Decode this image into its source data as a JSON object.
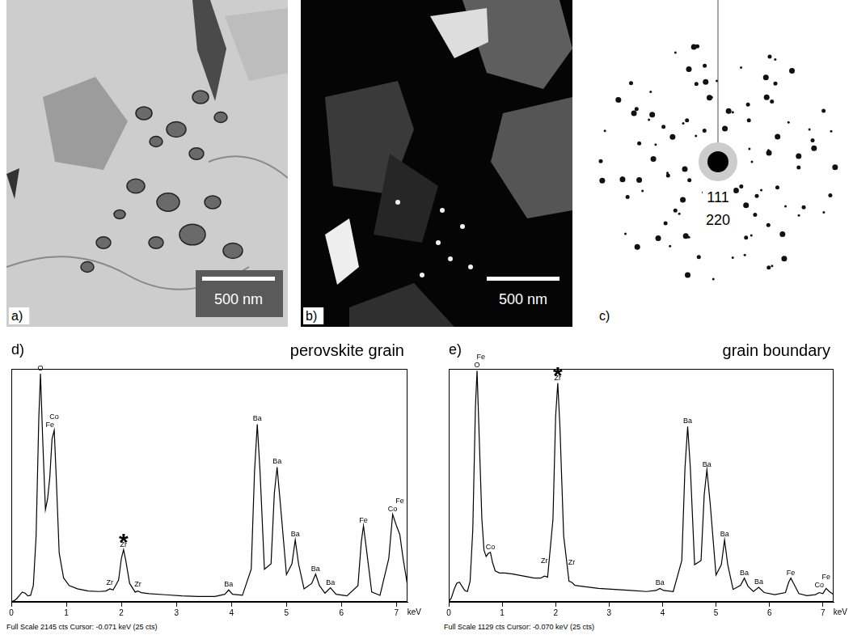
{
  "panels": [
    {
      "letter": "a)",
      "scale_bar": "500 nm"
    },
    {
      "letter": "b)",
      "scale_bar": "500 nm"
    },
    {
      "letter": "c)",
      "ring_labels": [
        "111",
        "220"
      ]
    }
  ],
  "chart_data": [
    {
      "type": "line",
      "letter": "d)",
      "title": "perovskite grain",
      "x_label": "keV",
      "footer": "Full Scale 2145 cts Cursor: -0.071 keV (25 cts)",
      "xlim": [
        0,
        7.2
      ],
      "xticks": [
        0,
        1,
        2,
        3,
        4,
        5,
        6,
        7
      ],
      "ylim": [
        0,
        2145
      ],
      "tick_labels": "x",
      "grid": false,
      "color": "#000000",
      "x": [
        0,
        0.05,
        0.1,
        0.15,
        0.2,
        0.25,
        0.3,
        0.35,
        0.4,
        0.45,
        0.5,
        0.53,
        0.57,
        0.62,
        0.66,
        0.7,
        0.74,
        0.78,
        0.82,
        0.87,
        0.95,
        1.05,
        1.2,
        1.4,
        1.6,
        1.72,
        1.79,
        1.85,
        1.95,
        2.0,
        2.04,
        2.08,
        2.15,
        2.25,
        2.3,
        2.36,
        2.5,
        2.8,
        3.1,
        3.4,
        3.7,
        3.88,
        3.95,
        4.02,
        4.2,
        4.36,
        4.42,
        4.47,
        4.52,
        4.6,
        4.72,
        4.78,
        4.83,
        4.89,
        5.0,
        5.1,
        5.16,
        5.22,
        5.32,
        5.46,
        5.53,
        5.6,
        5.7,
        5.8,
        5.9,
        6.1,
        6.3,
        6.36,
        6.4,
        6.45,
        6.55,
        6.7,
        6.86,
        6.93,
        7.0,
        7.06,
        7.12,
        7.2
      ],
      "values": [
        0,
        10,
        30,
        60,
        90,
        80,
        55,
        60,
        150,
        600,
        1700,
        2100,
        1500,
        850,
        950,
        1150,
        1500,
        1580,
        1100,
        450,
        220,
        150,
        120,
        100,
        95,
        100,
        120,
        110,
        200,
        400,
        480,
        380,
        170,
        90,
        100,
        85,
        75,
        65,
        55,
        50,
        50,
        70,
        110,
        70,
        60,
        300,
        1200,
        1635,
        1200,
        300,
        350,
        1000,
        1240,
        900,
        250,
        350,
        570,
        350,
        120,
        170,
        255,
        150,
        80,
        130,
        70,
        55,
        150,
        550,
        700,
        500,
        90,
        60,
        400,
        805,
        700,
        620,
        400,
        150
      ],
      "annotations": [
        {
          "text": "O",
          "x": 0.53
        },
        {
          "text": "Fe",
          "x": 0.7
        },
        {
          "text": "Co",
          "x": 0.78
        },
        {
          "text": "Zr",
          "x": 1.79
        },
        {
          "text": "Zr",
          "x": 2.04
        },
        {
          "text": "Zr",
          "x": 2.3
        },
        {
          "text": "Ba",
          "x": 3.95
        },
        {
          "text": "Ba",
          "x": 4.47
        },
        {
          "text": "Ba",
          "x": 4.83
        },
        {
          "text": "Ba",
          "x": 5.16
        },
        {
          "text": "Ba",
          "x": 5.53
        },
        {
          "text": "Ba",
          "x": 5.8
        },
        {
          "text": "Fe",
          "x": 6.4
        },
        {
          "text": "Co",
          "x": 6.93
        },
        {
          "text": "Fe",
          "x": 7.06
        }
      ],
      "highlight": {
        "text": "*",
        "x": 2.04
      }
    },
    {
      "type": "line",
      "letter": "e)",
      "title": "grain boundary",
      "x_label": "keV",
      "footer": "Full Scale 1129 cts Cursor: -0.070 keV (25 cts)",
      "xlim": [
        0,
        7.2
      ],
      "xticks": [
        0,
        1,
        2,
        3,
        4,
        5,
        6,
        7
      ],
      "ylim": [
        0,
        1129
      ],
      "tick_labels": "x",
      "grid": false,
      "color": "#000000",
      "x": [
        0,
        0.05,
        0.1,
        0.15,
        0.2,
        0.25,
        0.3,
        0.35,
        0.4,
        0.45,
        0.5,
        0.53,
        0.57,
        0.62,
        0.66,
        0.7,
        0.74,
        0.78,
        0.82,
        0.87,
        0.95,
        1.05,
        1.2,
        1.4,
        1.6,
        1.72,
        1.79,
        1.85,
        1.95,
        2.0,
        2.04,
        2.08,
        2.15,
        2.25,
        2.3,
        2.36,
        2.5,
        2.8,
        3.1,
        3.4,
        3.7,
        3.88,
        3.95,
        4.02,
        4.2,
        4.36,
        4.42,
        4.47,
        4.52,
        4.6,
        4.72,
        4.78,
        4.83,
        4.89,
        5.0,
        5.1,
        5.16,
        5.22,
        5.32,
        5.46,
        5.53,
        5.6,
        5.7,
        5.8,
        5.9,
        6.1,
        6.3,
        6.36,
        6.4,
        6.45,
        6.55,
        6.7,
        6.86,
        6.93,
        7.0,
        7.06,
        7.12,
        7.2
      ],
      "values": [
        0,
        20,
        60,
        90,
        95,
        75,
        55,
        50,
        100,
        350,
        950,
        1120,
        800,
        400,
        250,
        220,
        235,
        240,
        190,
        150,
        140,
        140,
        135,
        125,
        115,
        115,
        125,
        120,
        400,
        900,
        1060,
        850,
        320,
        100,
        95,
        80,
        75,
        65,
        60,
        55,
        50,
        55,
        65,
        55,
        50,
        200,
        650,
        850,
        650,
        180,
        200,
        520,
        640,
        480,
        130,
        180,
        300,
        180,
        60,
        80,
        115,
        75,
        50,
        70,
        45,
        35,
        45,
        95,
        115,
        90,
        40,
        30,
        35,
        45,
        40,
        65,
        50,
        35
      ],
      "annotations": [
        {
          "text": "O",
          "x": 0.53
        },
        {
          "text": "Fe",
          "x": 0.6
        },
        {
          "text": "Co",
          "x": 0.78
        },
        {
          "text": "Zr",
          "x": 1.79
        },
        {
          "text": "Zr",
          "x": 2.04
        },
        {
          "text": "Zr",
          "x": 2.3
        },
        {
          "text": "Ba",
          "x": 3.95
        },
        {
          "text": "Ba",
          "x": 4.47
        },
        {
          "text": "Ba",
          "x": 4.83
        },
        {
          "text": "Ba",
          "x": 5.16
        },
        {
          "text": "Ba",
          "x": 5.53
        },
        {
          "text": "Ba",
          "x": 5.8
        },
        {
          "text": "Fe",
          "x": 6.4
        },
        {
          "text": "Co",
          "x": 6.93
        },
        {
          "text": "Fe",
          "x": 7.06
        }
      ],
      "highlight": {
        "text": "*",
        "x": 2.04
      }
    }
  ]
}
